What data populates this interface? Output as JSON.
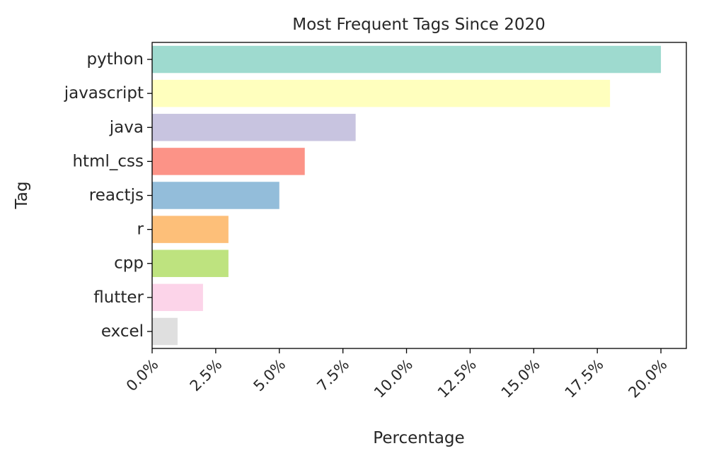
{
  "chart_data": {
    "type": "bar",
    "orientation": "horizontal",
    "title": "Most Frequent Tags Since 2020",
    "xlabel": "Percentage",
    "ylabel": "Tag",
    "categories": [
      "python",
      "javascript",
      "java",
      "html_css",
      "reactjs",
      "r",
      "cpp",
      "flutter",
      "excel"
    ],
    "values": [
      20.0,
      18.0,
      8.0,
      6.0,
      5.0,
      3.0,
      3.0,
      2.0,
      1.0
    ],
    "colors": [
      "#8dd3c7",
      "#ffffb3",
      "#bebada",
      "#fb8072",
      "#80b1d3",
      "#fdb462",
      "#b3de69",
      "#fccde5",
      "#d9d9d9"
    ],
    "xlim": [
      0,
      21
    ],
    "xticks": [
      0,
      2.5,
      5,
      7.5,
      10,
      12.5,
      15,
      17.5,
      20
    ],
    "xtick_labels": [
      "0.0%",
      "2.5%",
      "5.0%",
      "7.5%",
      "10.0%",
      "12.5%",
      "15.0%",
      "17.5%",
      "20.0%"
    ],
    "grid": false,
    "legend": false
  }
}
